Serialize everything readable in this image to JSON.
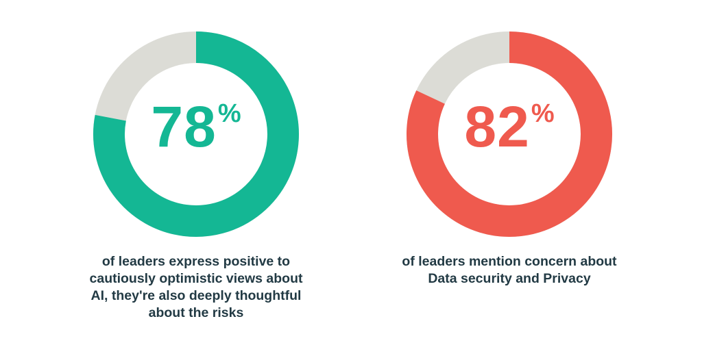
{
  "chart_data": [
    {
      "type": "pie",
      "value": 78,
      "remainder": 22,
      "stat_number": "78",
      "stat_unit": "%",
      "caption_lines": [
        "of leaders express positive to",
        "cautiously optimistic views about",
        "AI, they're also deeply thoughtful",
        "about the risks"
      ],
      "colors": {
        "value": "#14b794",
        "remainder": "#dcdcd6",
        "text": "#14b794"
      }
    },
    {
      "type": "pie",
      "value": 82,
      "remainder": 18,
      "stat_number": "82",
      "stat_unit": "%",
      "caption_lines": [
        "of leaders mention concern about",
        "Data security and Privacy"
      ],
      "colors": {
        "value": "#ef5a4e",
        "remainder": "#dcdcd6",
        "text": "#ef5a4e"
      }
    }
  ],
  "caption_color": "#223a44"
}
